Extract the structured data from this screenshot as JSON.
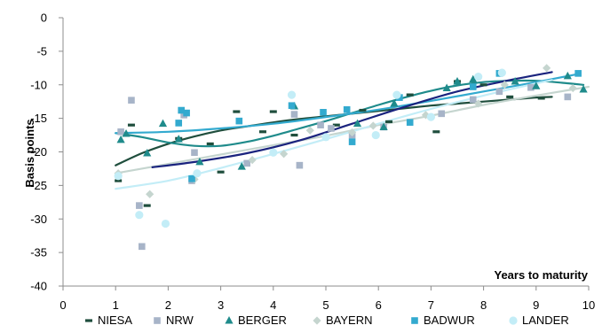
{
  "chart_data": {
    "type": "scatter",
    "ylabel": "Basis points",
    "xlabel": "Years to maturity",
    "xlim": [
      0,
      10
    ],
    "ylim": [
      -40,
      0
    ],
    "x_ticks": [
      "0",
      "1",
      "2",
      "3",
      "4",
      "5",
      "6",
      "7",
      "8",
      "9",
      "10"
    ],
    "y_ticks": [
      "0",
      "-5",
      "-10",
      "-15",
      "-20",
      "-25",
      "-30",
      "-35",
      "-40"
    ],
    "grid": "none",
    "legend_position": "bottom",
    "series": [
      {
        "name": "NIESA",
        "marker": "dash",
        "color": "#1f4e3d",
        "points": [
          [
            1.05,
            -24.3
          ],
          [
            1.3,
            -16
          ],
          [
            1.6,
            -28
          ],
          [
            2.2,
            -18
          ],
          [
            2.8,
            -18.8
          ],
          [
            3.0,
            -23
          ],
          [
            3.3,
            -14
          ],
          [
            3.8,
            -17
          ],
          [
            4.0,
            -14
          ],
          [
            4.4,
            -17.5
          ],
          [
            5.2,
            -16
          ],
          [
            5.7,
            -13.8
          ],
          [
            6.2,
            -15.5
          ],
          [
            6.6,
            -11.5
          ],
          [
            7.1,
            -17
          ],
          [
            7.5,
            -9.5
          ],
          [
            8.0,
            -10
          ],
          [
            8.5,
            -11.8
          ],
          [
            9.1,
            -12
          ]
        ],
        "trend": [
          [
            1.0,
            -22
          ],
          [
            1.5,
            -20.2
          ],
          [
            2.0,
            -18.8
          ],
          [
            2.5,
            -17.7
          ],
          [
            3.0,
            -16.8
          ],
          [
            3.5,
            -16.2
          ],
          [
            4.0,
            -15.6
          ],
          [
            4.5,
            -15.1
          ],
          [
            5.0,
            -14.7
          ],
          [
            5.5,
            -14.3
          ],
          [
            6.0,
            -13.9
          ],
          [
            6.5,
            -13.5
          ],
          [
            7.0,
            -13.1
          ],
          [
            7.5,
            -12.8
          ],
          [
            8.0,
            -12.5
          ],
          [
            8.5,
            -12.2
          ],
          [
            9.0,
            -11.9
          ],
          [
            9.3,
            -11.8
          ]
        ]
      },
      {
        "name": "NRW",
        "marker": "square",
        "color": "#a7b4c8",
        "points": [
          [
            1.1,
            -17
          ],
          [
            1.3,
            -12.3
          ],
          [
            1.45,
            -28
          ],
          [
            1.5,
            -34.1
          ],
          [
            2.3,
            -14.5
          ],
          [
            2.45,
            -24.3
          ],
          [
            2.5,
            -20.1
          ],
          [
            3.5,
            -21.7
          ],
          [
            4.4,
            -14.4
          ],
          [
            4.5,
            -22
          ],
          [
            4.9,
            -16
          ],
          [
            5.1,
            -16.5
          ],
          [
            5.5,
            -17.5
          ],
          [
            6.1,
            -16.3
          ],
          [
            7.2,
            -14.3
          ],
          [
            7.8,
            -12.2
          ],
          [
            8.3,
            -11
          ],
          [
            8.9,
            -10.4
          ],
          [
            9.6,
            -11.8
          ]
        ]
      },
      {
        "name": "BERGER",
        "marker": "triangle",
        "color": "#1f8b8b",
        "points": [
          [
            1.1,
            -18.2
          ],
          [
            1.2,
            -17.3
          ],
          [
            1.6,
            -20.2
          ],
          [
            1.9,
            -15.8
          ],
          [
            2.2,
            -18.1
          ],
          [
            2.6,
            -21.5
          ],
          [
            3.4,
            -22.2
          ],
          [
            4.4,
            -13.2
          ],
          [
            5.6,
            -15.8
          ],
          [
            6.1,
            -16.3
          ],
          [
            6.3,
            -12.8
          ],
          [
            7.3,
            -10.5
          ],
          [
            7.5,
            -9.5
          ],
          [
            7.8,
            -9.2
          ],
          [
            8.6,
            -9.5
          ],
          [
            9.0,
            -10.2
          ],
          [
            9.6,
            -8.7
          ],
          [
            9.9,
            -10.7
          ]
        ],
        "trend": [
          [
            1.0,
            -17.2
          ],
          [
            1.5,
            -17.8
          ],
          [
            2.0,
            -18.6
          ],
          [
            2.5,
            -19.1
          ],
          [
            3.0,
            -19.1
          ],
          [
            3.5,
            -18.5
          ],
          [
            4.0,
            -17.6
          ],
          [
            4.5,
            -16.5
          ],
          [
            5.0,
            -15.4
          ],
          [
            5.5,
            -14.2
          ],
          [
            6.0,
            -13.0
          ],
          [
            6.5,
            -11.9
          ],
          [
            7.0,
            -10.9
          ],
          [
            7.5,
            -10.1
          ],
          [
            8.0,
            -9.6
          ],
          [
            8.5,
            -9.4
          ],
          [
            9.0,
            -9.4
          ],
          [
            9.5,
            -9.7
          ],
          [
            9.9,
            -10.0
          ]
        ]
      },
      {
        "name": "BAYERN",
        "marker": "diamond",
        "color": "#c5d5cf",
        "points": [
          [
            1.05,
            -23.2
          ],
          [
            1.65,
            -26.3
          ],
          [
            2.5,
            -24.1
          ],
          [
            3.6,
            -21.2
          ],
          [
            4.2,
            -20.3
          ],
          [
            4.7,
            -16.8
          ],
          [
            5.5,
            -17.1
          ],
          [
            5.9,
            -16.1
          ],
          [
            6.9,
            -14.5
          ],
          [
            7.9,
            -12.8
          ],
          [
            8.4,
            -10
          ],
          [
            9.2,
            -7.5
          ],
          [
            9.7,
            -10.5
          ]
        ],
        "trend": [
          [
            1.0,
            -23.2
          ],
          [
            2.0,
            -21.8
          ],
          [
            3.0,
            -20.4
          ],
          [
            4.0,
            -19.0
          ],
          [
            5.0,
            -17.6
          ],
          [
            6.0,
            -16.0
          ],
          [
            7.0,
            -14.6
          ],
          [
            8.0,
            -13.0
          ],
          [
            9.0,
            -11.6
          ],
          [
            10.0,
            -10.3
          ]
        ]
      },
      {
        "name": "BADWUR",
        "marker": "square",
        "color": "#33aacf",
        "points": [
          [
            2.25,
            -13.8
          ],
          [
            2.2,
            -15.7
          ],
          [
            2.35,
            -14.2
          ],
          [
            2.45,
            -24
          ],
          [
            3.35,
            -15.4
          ],
          [
            4.35,
            -13.1
          ],
          [
            4.95,
            -14.1
          ],
          [
            5.4,
            -13.7
          ],
          [
            5.5,
            -18.5
          ],
          [
            6.4,
            -11.9
          ],
          [
            6.6,
            -15.6
          ],
          [
            7.8,
            -10.3
          ],
          [
            8.3,
            -8.3
          ],
          [
            9.8,
            -8.3
          ]
        ],
        "trend": [
          [
            1.0,
            -17.2
          ],
          [
            2.0,
            -17.0
          ],
          [
            3.0,
            -16.5
          ],
          [
            4.0,
            -15.8
          ],
          [
            5.0,
            -14.8
          ],
          [
            6.0,
            -13.7
          ],
          [
            7.0,
            -12.4
          ],
          [
            8.0,
            -11.0
          ],
          [
            9.0,
            -9.6
          ],
          [
            9.8,
            -8.4
          ]
        ]
      },
      {
        "name": "LANDER",
        "marker": "circle",
        "color": "#c3edf7",
        "points": [
          [
            1.05,
            -23.6
          ],
          [
            1.45,
            -29.4
          ],
          [
            1.95,
            -30.7
          ],
          [
            2.55,
            -23.2
          ],
          [
            4.0,
            -20.1
          ],
          [
            4.35,
            -11.5
          ],
          [
            5.0,
            -17.8
          ],
          [
            5.95,
            -17.5
          ],
          [
            6.35,
            -11.5
          ],
          [
            7.0,
            -14.8
          ],
          [
            7.9,
            -8.8
          ],
          [
            8.35,
            -8.2
          ]
        ],
        "trend": [
          [
            1.0,
            -25.5
          ],
          [
            2.0,
            -24.3
          ],
          [
            3.0,
            -22.4
          ],
          [
            4.0,
            -20.3
          ],
          [
            5.0,
            -18.1
          ],
          [
            6.0,
            -15.8
          ],
          [
            7.0,
            -13.6
          ],
          [
            8.0,
            -11.6
          ],
          [
            9.0,
            -9.8
          ],
          [
            9.3,
            -9.3
          ]
        ]
      },
      {
        "name": "",
        "marker": "none",
        "color": "#1a237e",
        "trend": [
          [
            1.7,
            -22.3
          ],
          [
            2.5,
            -21.5
          ],
          [
            3.5,
            -20.2
          ],
          [
            4.5,
            -18.3
          ],
          [
            5.5,
            -15.8
          ],
          [
            6.5,
            -13.3
          ],
          [
            7.5,
            -11.0
          ],
          [
            8.5,
            -9.3
          ],
          [
            9.3,
            -8.1
          ]
        ]
      }
    ]
  }
}
